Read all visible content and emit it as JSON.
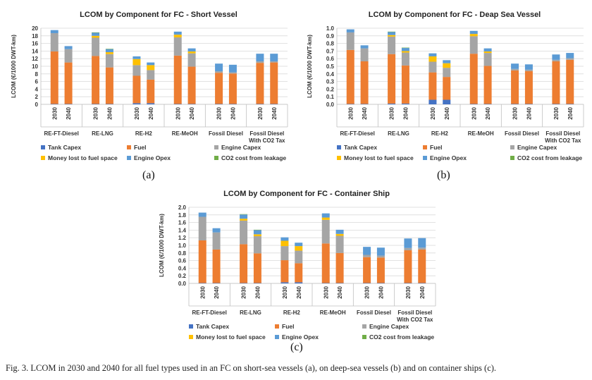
{
  "caption": "Fig. 3. LCOM in 2030 and 2040 for all fuel types used in an FC on short-sea vessels (a), on deep-sea vessels (b) and on container ships (c).",
  "legend": [
    {
      "name": "Tank Capex",
      "color": "#4472C4"
    },
    {
      "name": "Fuel",
      "color": "#ED7D31"
    },
    {
      "name": "Engine Capex",
      "color": "#A5A5A5"
    },
    {
      "name": "Money lost to fuel space",
      "color": "#FFC000"
    },
    {
      "name": "Engine Opex",
      "color": "#5B9BD5"
    },
    {
      "name": "CO2 cost from leakage",
      "color": "#70AD47"
    }
  ],
  "chart_data": [
    {
      "id": "a",
      "label": "(a)",
      "type": "bar",
      "stacked": true,
      "title": "LCOM by Component for FC - Short Vessel",
      "ylabel": "LCOM (€/1000 DWT-km)",
      "ylim": [
        0,
        20
      ],
      "yticks": [
        "0",
        "2",
        "4",
        "6",
        "8",
        "10",
        "12",
        "14",
        "16",
        "18",
        "20"
      ],
      "years": [
        "2030",
        "2040"
      ],
      "groups": [
        "RE-FT-Diesel",
        "RE-LNG",
        "RE-H2",
        "RE-MeOH",
        "Fossil Diesel",
        "Fossil Diesel With CO2 Tax"
      ],
      "grid": true,
      "legend_position": "bottom",
      "series": [
        {
          "name": "Tank Capex",
          "values": [
            0.1,
            0.1,
            0.1,
            0.1,
            0.3,
            0.3,
            0.1,
            0.1,
            0.1,
            0.1,
            0.1,
            0.1
          ]
        },
        {
          "name": "Fuel",
          "values": [
            13.8,
            10.9,
            12.6,
            9.6,
            7.2,
            6.2,
            12.7,
            9.8,
            8.2,
            8.0,
            10.8,
            10.9
          ]
        },
        {
          "name": "Engine Capex",
          "values": [
            4.8,
            3.5,
            4.8,
            3.5,
            2.8,
            2.5,
            4.8,
            3.5,
            0.4,
            0.3,
            0.4,
            0.3
          ]
        },
        {
          "name": "Money lost to fuel space",
          "values": [
            0.0,
            0.0,
            0.5,
            0.5,
            1.6,
            1.3,
            0.7,
            0.5,
            0.0,
            0.0,
            0.0,
            0.0
          ]
        },
        {
          "name": "Engine Opex",
          "values": [
            0.8,
            0.8,
            0.8,
            0.8,
            0.7,
            0.7,
            0.8,
            0.8,
            2.0,
            2.0,
            2.0,
            2.0
          ]
        },
        {
          "name": "CO2 cost from leakage",
          "values": [
            0.0,
            0.0,
            0.1,
            0.1,
            0.0,
            0.0,
            0.0,
            0.0,
            0.0,
            0.0,
            0.0,
            0.0
          ]
        }
      ]
    },
    {
      "id": "b",
      "label": "(b)",
      "type": "bar",
      "stacked": true,
      "title": "LCOM by Component for FC - Deap Sea Vessel",
      "ylabel": "LCOM (€/1000 DWT-km)",
      "ylim": [
        0,
        1.0
      ],
      "yticks": [
        "0.0",
        "0.1",
        "0.2",
        "0.3",
        "0.4",
        "0.5",
        "0.6",
        "0.7",
        "0.8",
        "0.9",
        "1.0"
      ],
      "years": [
        "2030",
        "2040"
      ],
      "groups": [
        "RE-FT-Diesel",
        "RE-LNG",
        "RE-H2",
        "RE-MeOH",
        "Fossil Diesel",
        "Fossil Diesel With CO2 Tax"
      ],
      "grid": true,
      "legend_position": "bottom",
      "series": [
        {
          "name": "Tank Capex",
          "values": [
            0.005,
            0.005,
            0.01,
            0.01,
            0.06,
            0.06,
            0.005,
            0.005,
            0.005,
            0.005,
            0.005,
            0.005
          ]
        },
        {
          "name": "Fuel",
          "values": [
            0.71,
            0.56,
            0.65,
            0.5,
            0.36,
            0.3,
            0.66,
            0.5,
            0.44,
            0.43,
            0.56,
            0.58
          ]
        },
        {
          "name": "Engine Capex",
          "values": [
            0.23,
            0.17,
            0.23,
            0.17,
            0.14,
            0.12,
            0.23,
            0.17,
            0.02,
            0.02,
            0.02,
            0.02
          ]
        },
        {
          "name": "Money lost to fuel space",
          "values": [
            0.0,
            0.0,
            0.02,
            0.02,
            0.07,
            0.06,
            0.03,
            0.02,
            0.0,
            0.0,
            0.0,
            0.0
          ]
        },
        {
          "name": "Engine Opex",
          "values": [
            0.04,
            0.04,
            0.04,
            0.04,
            0.04,
            0.04,
            0.04,
            0.04,
            0.07,
            0.07,
            0.07,
            0.07
          ]
        },
        {
          "name": "CO2 cost from leakage",
          "values": [
            0.0,
            0.0,
            0.005,
            0.005,
            0.0,
            0.0,
            0.0,
            0.0,
            0.0,
            0.0,
            0.0,
            0.0
          ]
        }
      ]
    },
    {
      "id": "c",
      "label": "(c)",
      "type": "bar",
      "stacked": true,
      "title": "LCOM by Component for FC - Container Ship",
      "ylabel": "LCOM (€/1000 DWT-km)",
      "ylim": [
        0,
        2.0
      ],
      "yticks": [
        "0.0",
        "0.2",
        "0.4",
        "0.6",
        "0.8",
        "1.0",
        "1.2",
        "1.4",
        "1.6",
        "1.8",
        "2.0"
      ],
      "years": [
        "2030",
        "2040"
      ],
      "groups": [
        "RE-FT-Diesel",
        "RE-LNG",
        "RE-H2",
        "RE-MeOH",
        "Fossil Diesel",
        "Fossil Diesel With CO2 Tax"
      ],
      "grid": true,
      "legend_position": "bottom",
      "series": [
        {
          "name": "Tank Capex",
          "values": [
            0.01,
            0.01,
            0.01,
            0.01,
            0.03,
            0.03,
            0.01,
            0.01,
            0.01,
            0.01,
            0.01,
            0.01
          ]
        },
        {
          "name": "Fuel",
          "values": [
            1.12,
            0.88,
            1.02,
            0.78,
            0.58,
            0.5,
            1.04,
            0.79,
            0.68,
            0.67,
            0.86,
            0.88
          ]
        },
        {
          "name": "Engine Capex",
          "values": [
            0.62,
            0.45,
            0.62,
            0.45,
            0.37,
            0.33,
            0.62,
            0.45,
            0.06,
            0.05,
            0.06,
            0.05
          ]
        },
        {
          "name": "Money lost to fuel space",
          "values": [
            0.0,
            0.0,
            0.05,
            0.05,
            0.14,
            0.12,
            0.06,
            0.05,
            0.0,
            0.0,
            0.0,
            0.0
          ]
        },
        {
          "name": "Engine Opex",
          "values": [
            0.11,
            0.11,
            0.11,
            0.11,
            0.09,
            0.09,
            0.11,
            0.11,
            0.21,
            0.21,
            0.25,
            0.25
          ]
        },
        {
          "name": "CO2 cost from leakage",
          "values": [
            0.0,
            0.0,
            0.01,
            0.01,
            0.0,
            0.0,
            0.0,
            0.0,
            0.0,
            0.0,
            0.0,
            0.0
          ]
        }
      ]
    }
  ]
}
